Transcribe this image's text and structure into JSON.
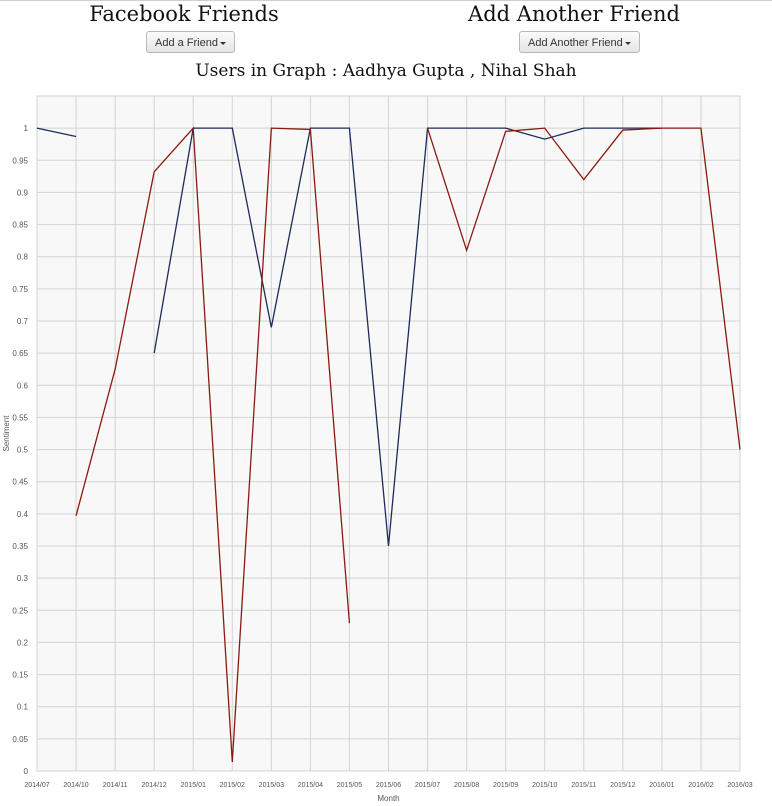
{
  "header": {
    "left_title": "Facebook Friends",
    "left_button": "Add a Friend",
    "right_title": "Add Another Friend",
    "right_button": "Add Another Friend"
  },
  "graph_title": "Users in Graph : Aadhya Gupta , Nihal Shah",
  "chart_data": {
    "type": "line",
    "title": "Users in Graph : Aadhya Gupta , Nihal Shah",
    "xlabel": "Month",
    "ylabel": "Sentiment",
    "categories": [
      "2014/07",
      "2014/10",
      "2014/11",
      "2014/12",
      "2015/01",
      "2015/02",
      "2015/03",
      "2015/04",
      "2015/05",
      "2015/06",
      "2015/07",
      "2015/08",
      "2015/09",
      "2015/10",
      "2015/11",
      "2015/12",
      "2016/01",
      "2016/02",
      "2016/03"
    ],
    "ylim": [
      0,
      1.05
    ],
    "yticks": [
      0,
      0.05,
      0.1,
      0.15,
      0.2,
      0.25,
      0.3,
      0.35,
      0.4,
      0.45,
      0.5,
      0.55,
      0.6,
      0.65,
      0.7,
      0.75,
      0.8,
      0.85,
      0.9,
      0.95,
      1
    ],
    "grid": true,
    "legend": "none",
    "series": [
      {
        "color": "#1f2a5c",
        "values": [
          1,
          0.987,
          null,
          0.65,
          1,
          1,
          0.69,
          1,
          1,
          0.35,
          1,
          1,
          1,
          0.983,
          1,
          1,
          1,
          null,
          null
        ]
      },
      {
        "color": "#8b1a0e",
        "values": [
          null,
          0.397,
          0.625,
          0.932,
          1,
          0.014,
          1,
          0.998,
          0.23,
          null,
          1,
          0.81,
          0.995,
          1,
          0.92,
          0.997,
          1,
          1,
          0.5
        ]
      }
    ]
  }
}
